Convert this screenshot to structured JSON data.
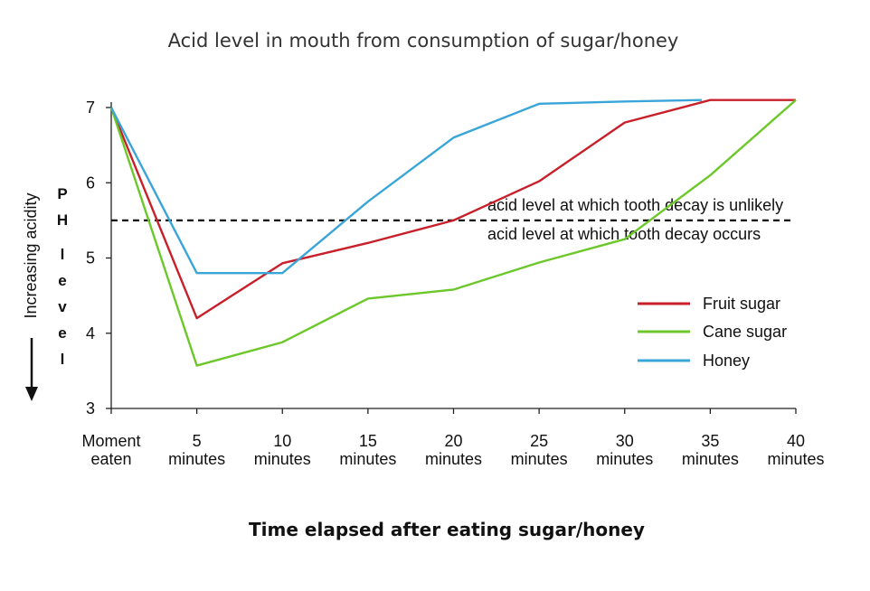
{
  "chart_data": {
    "type": "line",
    "title": "Acid level in mouth from consumption of sugar/honey",
    "xlabel": "Time elapsed after eating sugar/honey",
    "ylabel_pH": "P H  l e v e l",
    "ylabel_acidity": "Increasing acidity",
    "categories": [
      [
        "Moment",
        "eaten"
      ],
      [
        "5",
        "minutes"
      ],
      [
        "10",
        "minutes"
      ],
      [
        "15",
        "minutes"
      ],
      [
        "20",
        "minutes"
      ],
      [
        "25",
        "minutes"
      ],
      [
        "30",
        "minutes"
      ],
      [
        "35",
        "minutes"
      ],
      [
        "40",
        "minutes"
      ]
    ],
    "x": [
      0,
      5,
      10,
      15,
      20,
      25,
      30,
      35,
      40
    ],
    "ylim": [
      3,
      7
    ],
    "yticks": [
      "3",
      "4",
      "5",
      "6",
      "7"
    ],
    "grid": false,
    "legend_position": "right",
    "series": [
      {
        "name": "Fruit sugar",
        "color": "#c8202a",
        "x": [
          0,
          5,
          10,
          15,
          20,
          25,
          30,
          35,
          40
        ],
        "values": [
          7.0,
          4.2,
          4.93,
          5.2,
          5.5,
          6.02,
          6.8,
          7.1,
          7.1
        ]
      },
      {
        "name": "Cane sugar",
        "color": "#6cc82a",
        "x": [
          0,
          5,
          10,
          15,
          20,
          25,
          30,
          35,
          40
        ],
        "values": [
          7.0,
          3.57,
          3.88,
          4.46,
          4.58,
          4.94,
          5.25,
          6.1,
          7.1
        ]
      },
      {
        "name": "Honey",
        "color": "#3aa5d8",
        "x": [
          0,
          5,
          10,
          15,
          20,
          25,
          30,
          34.5
        ],
        "values": [
          7.0,
          4.8,
          4.8,
          5.75,
          6.6,
          7.05,
          7.08,
          7.1
        ]
      }
    ],
    "threshold": {
      "value": 5.5,
      "label_above": "acid level at which tooth decay is unlikely",
      "label_below": "acid level at which tooth decay occurs"
    }
  }
}
